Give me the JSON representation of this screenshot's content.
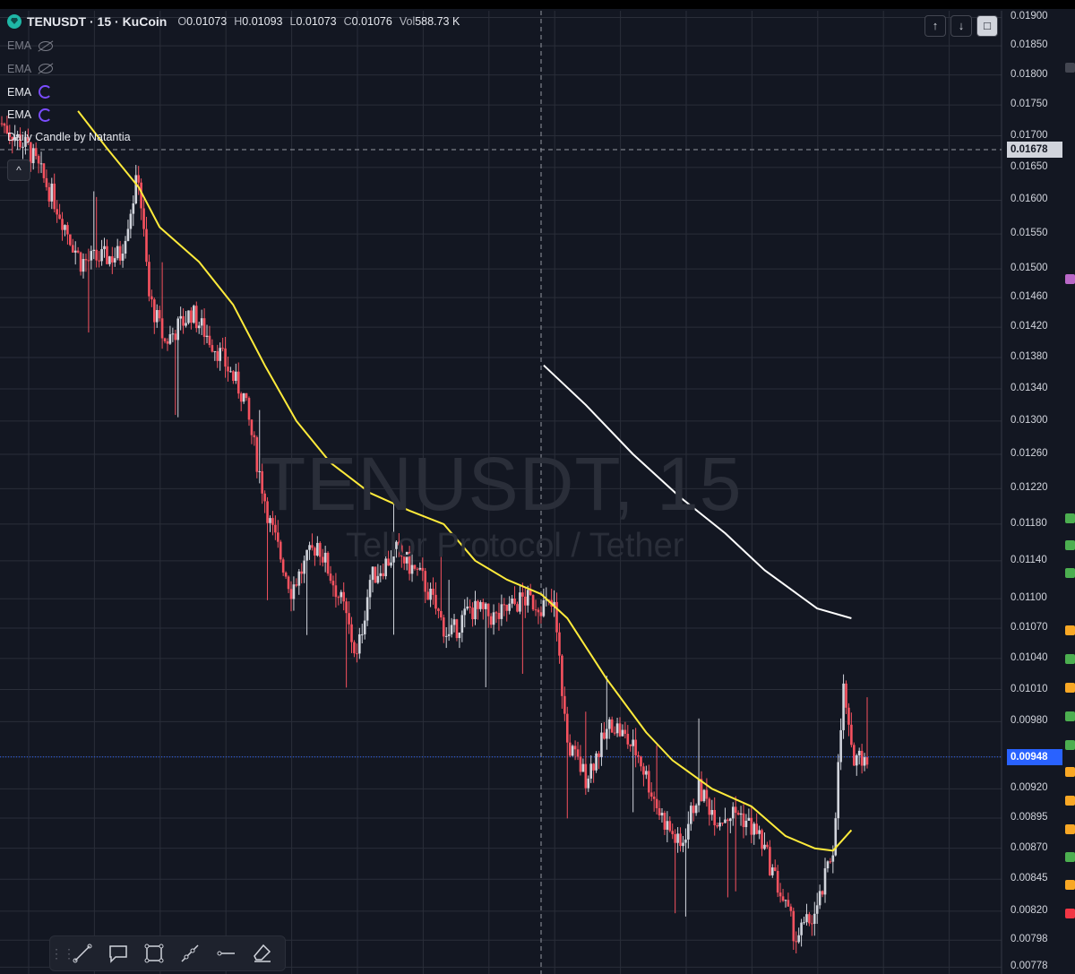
{
  "header": {
    "symbol": "TENUSDT · 15 · KuCoin",
    "ohlc": [
      {
        "k": "O",
        "v": "0.01073"
      },
      {
        "k": "H",
        "v": "0.01093"
      },
      {
        "k": "L",
        "v": "0.01073"
      },
      {
        "k": "C",
        "v": "0.01076"
      },
      {
        "k": "Vol",
        "v": "588.73 K"
      }
    ]
  },
  "indicators": [
    {
      "label": "EMA",
      "state": "hidden"
    },
    {
      "label": "EMA",
      "state": "hidden"
    },
    {
      "label": "EMA",
      "state": "visible"
    },
    {
      "label": "EMA",
      "state": "visible"
    },
    {
      "label": "Daily Candle by Natantia",
      "state": "visible"
    }
  ],
  "collapse_label": "^",
  "top_buttons": [
    "↑",
    "↓",
    "□"
  ],
  "watermark": {
    "title": "TENUSDT, 15",
    "subtitle": "Tellor Protocol / Tether"
  },
  "colors": {
    "background": "#131722",
    "grid": "#2a2e39",
    "up": "#d1d4dc",
    "down": "#f7525f",
    "ema_yellow": "#ffeb3b",
    "ema_white": "#ffffff"
  },
  "chart_data": {
    "type": "candlestick",
    "title": "",
    "xlabel": "",
    "ylabel": "",
    "ylim": [
      0.00773,
      0.01912
    ],
    "y_scale": "log",
    "y_ticks": [
      "0.01900",
      "0.01850",
      "0.01800",
      "0.01750",
      "0.01700",
      "0.01650",
      "0.01600",
      "0.01550",
      "0.01500",
      "0.01460",
      "0.01420",
      "0.01380",
      "0.01340",
      "0.01300",
      "0.01260",
      "0.01220",
      "0.01180",
      "0.01140",
      "0.01100",
      "0.01070",
      "0.01040",
      "0.01010",
      "0.00980",
      "0.00948",
      "0.00920",
      "0.00895",
      "0.00870",
      "0.00845",
      "0.00820",
      "0.00798",
      "0.00778"
    ],
    "crosshair_price": "0.01678",
    "current_price": "0.00948",
    "keypoints": [
      [
        0,
        0.0172
      ],
      [
        10,
        0.0168
      ],
      [
        20,
        0.016
      ],
      [
        30,
        0.0151
      ],
      [
        45,
        0.0152
      ],
      [
        52,
        0.0164
      ],
      [
        56,
        0.0146
      ],
      [
        62,
        0.014
      ],
      [
        72,
        0.0144
      ],
      [
        82,
        0.0139
      ],
      [
        92,
        0.0133
      ],
      [
        102,
        0.0118
      ],
      [
        110,
        0.0111
      ],
      [
        120,
        0.0116
      ],
      [
        130,
        0.0109
      ],
      [
        135,
        0.0104
      ],
      [
        140,
        0.0112
      ],
      [
        150,
        0.0115
      ],
      [
        160,
        0.0112
      ],
      [
        170,
        0.0106
      ],
      [
        178,
        0.0109
      ],
      [
        188,
        0.0108
      ],
      [
        198,
        0.011
      ],
      [
        210,
        0.0109
      ],
      [
        215,
        0.0096
      ],
      [
        222,
        0.0093
      ],
      [
        232,
        0.0098
      ],
      [
        242,
        0.0095
      ],
      [
        250,
        0.009
      ],
      [
        258,
        0.0087
      ],
      [
        265,
        0.0092
      ],
      [
        272,
        0.00895
      ],
      [
        280,
        0.009
      ],
      [
        288,
        0.0088
      ],
      [
        295,
        0.0084
      ],
      [
        302,
        0.008
      ],
      [
        310,
        0.0082
      ],
      [
        316,
        0.0087
      ],
      [
        320,
        0.0101
      ],
      [
        323,
        0.0095
      ]
    ],
    "series": [
      {
        "name": "EMA",
        "points": [
          [
            29,
            0.0174
          ],
          [
            40,
            0.0168
          ],
          [
            52,
            0.0162
          ],
          [
            60,
            0.0156
          ],
          [
            75,
            0.0151
          ],
          [
            88,
            0.0145
          ],
          [
            100,
            0.0137
          ],
          [
            112,
            0.013
          ],
          [
            125,
            0.0125
          ],
          [
            140,
            0.01215
          ],
          [
            155,
            0.01195
          ],
          [
            168,
            0.0118
          ],
          [
            180,
            0.0114
          ],
          [
            192,
            0.0112
          ],
          [
            205,
            0.01105
          ],
          [
            215,
            0.0108
          ],
          [
            230,
            0.0102
          ],
          [
            245,
            0.0097
          ],
          [
            255,
            0.00945
          ],
          [
            270,
            0.0092
          ],
          [
            285,
            0.00905
          ],
          [
            298,
            0.0088
          ],
          [
            309,
            0.0087
          ],
          [
            316,
            0.00868
          ],
          [
            323,
            0.00885
          ]
        ]
      },
      {
        "name": "EMA",
        "points": [
          [
            206,
            0.0137
          ],
          [
            222,
            0.0132
          ],
          [
            240,
            0.0126
          ],
          [
            258,
            0.0121
          ],
          [
            275,
            0.0117
          ],
          [
            290,
            0.0113
          ],
          [
            310,
            0.0109
          ],
          [
            323,
            0.0108
          ]
        ]
      }
    ]
  }
}
